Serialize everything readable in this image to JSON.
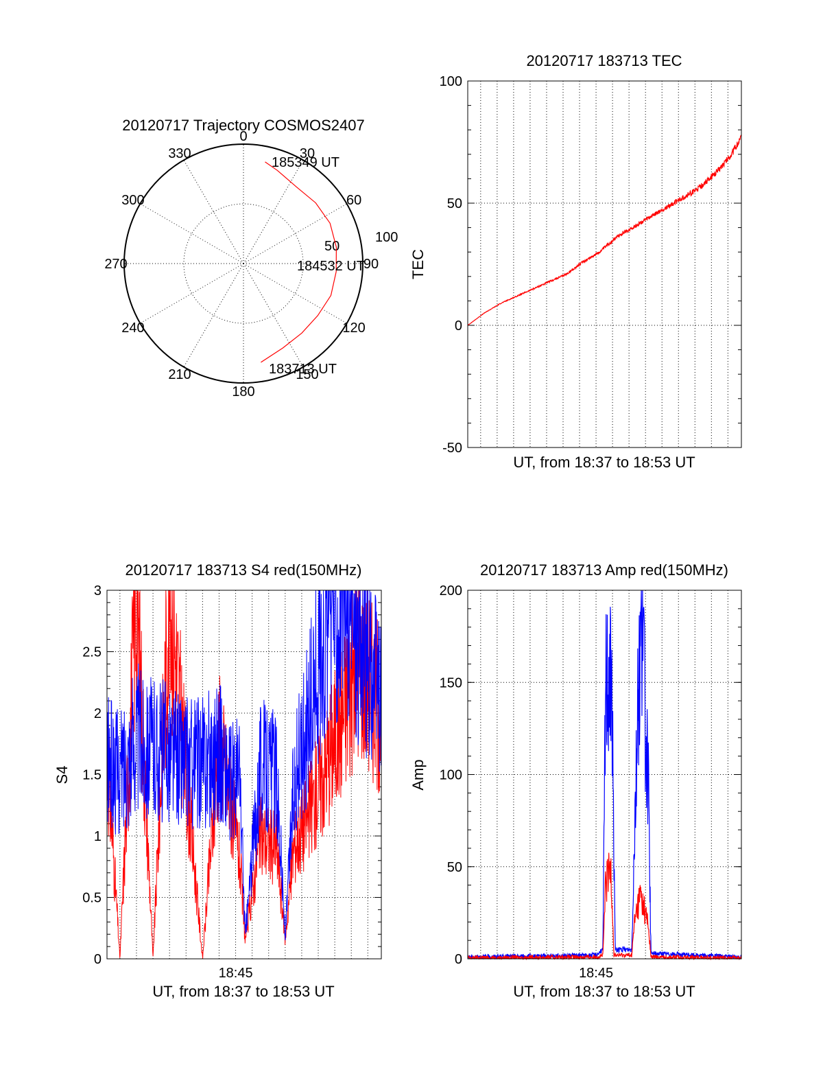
{
  "colors": {
    "red": "#ff0000",
    "blue": "#0000ff",
    "axis": "#000000"
  },
  "chart_data": [
    {
      "id": "trajectory",
      "type": "polar",
      "title": "20120717 Trajectory COSMOS2407",
      "angle_ticks": [
        "0",
        "30",
        "60",
        "90",
        "120",
        "150",
        "180",
        "210",
        "240",
        "270",
        "300",
        "330"
      ],
      "radial_ticks": [
        "50",
        "100"
      ],
      "radial_max": 100,
      "grid": true,
      "point_labels": [
        "185349 UT",
        "184532 UT",
        "183713 UT"
      ],
      "trajectory": [
        {
          "azimuth": 170,
          "zenith": 84
        },
        {
          "azimuth": 155,
          "zenith": 78
        },
        {
          "azimuth": 140,
          "zenith": 76
        },
        {
          "azimuth": 125,
          "zenith": 76
        },
        {
          "azimuth": 110,
          "zenith": 78
        },
        {
          "azimuth": 95,
          "zenith": 78
        },
        {
          "azimuth": 80,
          "zenith": 79
        },
        {
          "azimuth": 65,
          "zenith": 80
        },
        {
          "azimuth": 50,
          "zenith": 79
        },
        {
          "azimuth": 35,
          "zenith": 78
        },
        {
          "azimuth": 20,
          "zenith": 83
        },
        {
          "azimuth": 12,
          "zenith": 87
        }
      ]
    },
    {
      "id": "tec",
      "type": "line",
      "title": "20120717 183713 TEC",
      "xlabel": "UT, from 18:37 to 18:53 UT",
      "ylabel": "TEC",
      "xlim": [
        "18:37:13",
        "18:53:49"
      ],
      "ylim": [
        -50,
        100
      ],
      "yticks": [
        "100",
        "50",
        "0",
        "-50"
      ],
      "grid": true,
      "series": [
        {
          "color": "#ff0000",
          "x": [
            "18:37:13",
            "18:38:13",
            "18:39:13",
            "18:40:13",
            "18:41:13",
            "18:42:13",
            "18:43:13",
            "18:44:13",
            "18:45:13",
            "18:46:13",
            "18:47:13",
            "18:48:13",
            "18:49:13",
            "18:50:13",
            "18:51:13",
            "18:52:13",
            "18:53:13",
            "18:53:49"
          ],
          "values": [
            0,
            5,
            9,
            12,
            15,
            18,
            21,
            26,
            30,
            36,
            40,
            44,
            48,
            52,
            56,
            62,
            70,
            77
          ]
        }
      ]
    },
    {
      "id": "s4",
      "type": "line",
      "title": "20120717 183713 S4 red(150MHz)",
      "xlabel": "UT, from 18:37 to 18:53 UT",
      "ylabel": "S4",
      "xlim": [
        "18:37:13",
        "18:53:49"
      ],
      "ylim": [
        0,
        3
      ],
      "xticks": [
        "18:45"
      ],
      "yticks": [
        "3",
        "2.5",
        "2",
        "1.5",
        "1",
        "0.5",
        "0"
      ],
      "grid": true,
      "series": [
        {
          "color": "#ff0000",
          "x": [
            "18:37:13",
            "18:38:00",
            "18:39:00",
            "18:40:00",
            "18:41:00",
            "18:42:00",
            "18:43:00",
            "18:44:00",
            "18:44:40",
            "18:45:15",
            "18:45:35",
            "18:46:30",
            "18:47:30",
            "18:48:00",
            "18:48:30",
            "18:49:30",
            "18:50:30",
            "18:51:30",
            "18:52:30",
            "18:53:49"
          ],
          "values": [
            1.7,
            0.0,
            3.0,
            0.0,
            3.0,
            1.5,
            0.0,
            1.8,
            1.3,
            0.8,
            0.15,
            1.0,
            0.9,
            0.15,
            0.9,
            1.2,
            1.6,
            2.0,
            2.5,
            2.0
          ]
        },
        {
          "color": "#0000ff",
          "x": [
            "18:37:13",
            "18:38:00",
            "18:39:00",
            "18:40:00",
            "18:41:00",
            "18:42:00",
            "18:43:00",
            "18:44:00",
            "18:44:40",
            "18:45:15",
            "18:45:35",
            "18:46:30",
            "18:47:30",
            "18:48:00",
            "18:48:30",
            "18:49:30",
            "18:50:30",
            "18:51:30",
            "18:52:30",
            "18:53:49"
          ],
          "values": [
            1.6,
            1.5,
            1.8,
            1.7,
            1.7,
            1.6,
            1.6,
            1.7,
            1.4,
            1.5,
            0.18,
            1.6,
            1.5,
            0.16,
            1.4,
            2.0,
            2.8,
            3.0,
            2.6,
            2.1
          ]
        }
      ]
    },
    {
      "id": "amp",
      "type": "line",
      "title": "20120717 183713 Amp red(150MHz)",
      "xlabel": "UT, from 18:37 to 18:53 UT",
      "ylabel": "Amp",
      "xlim": [
        "18:37:13",
        "18:53:49"
      ],
      "ylim": [
        0,
        200
      ],
      "xticks": [
        "18:45"
      ],
      "yticks": [
        "200",
        "150",
        "100",
        "50",
        "0"
      ],
      "grid": true,
      "series": [
        {
          "color": "#ff0000",
          "x": [
            "18:37:13",
            "18:45:00",
            "18:45:25",
            "18:45:35",
            "18:45:55",
            "18:46:05",
            "18:47:10",
            "18:47:20",
            "18:47:40",
            "18:48:00",
            "18:48:10",
            "18:48:20",
            "18:53:49"
          ],
          "values": [
            0.5,
            1,
            2,
            40,
            50,
            2,
            2,
            20,
            35,
            25,
            18,
            1,
            0.5
          ]
        },
        {
          "color": "#0000ff",
          "x": [
            "18:37:13",
            "18:45:00",
            "18:45:25",
            "18:45:35",
            "18:45:50",
            "18:46:00",
            "18:46:10",
            "18:47:10",
            "18:47:20",
            "18:47:35",
            "18:47:50",
            "18:48:00",
            "18:48:10",
            "18:48:20",
            "18:53:49"
          ],
          "values": [
            1,
            2,
            5,
            150,
            160,
            120,
            5,
            5,
            70,
            150,
            195,
            120,
            95,
            3,
            1
          ]
        }
      ]
    }
  ]
}
